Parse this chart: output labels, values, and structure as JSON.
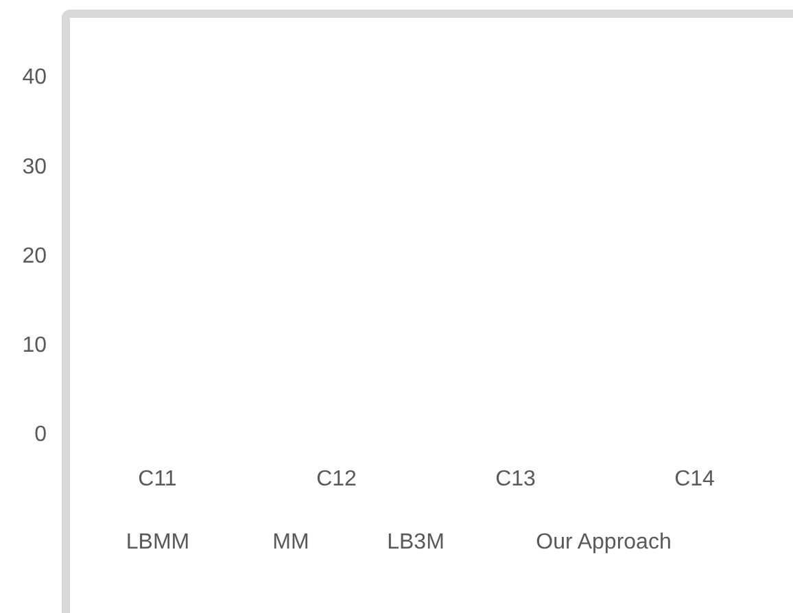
{
  "chart_data": {
    "type": "bar",
    "categories": [
      "C11",
      "C12",
      "C13",
      "C14"
    ],
    "series": [
      {
        "name": "LBMM",
        "values": [
          0,
          0,
          0,
          0
        ]
      },
      {
        "name": "MM",
        "values": [
          0,
          0,
          0,
          0
        ]
      },
      {
        "name": "LB3M",
        "values": [
          0,
          0,
          0,
          0
        ]
      },
      {
        "name": "Our Approach",
        "values": [
          0,
          0,
          0,
          0
        ]
      }
    ],
    "ylim": [
      0,
      47
    ],
    "yticks": [
      0,
      10,
      20,
      30,
      40
    ]
  }
}
